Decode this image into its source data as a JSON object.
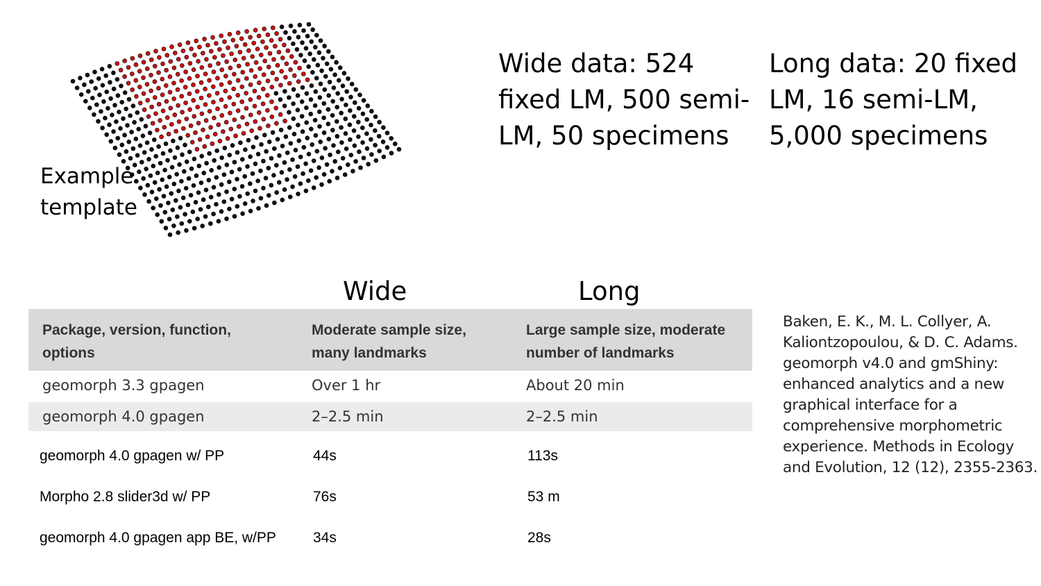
{
  "template": {
    "label": "Example\ntemplate",
    "colors": {
      "fixed": "#111111",
      "semi": "#cc1111"
    }
  },
  "wide_description": "Wide data: 524\nfixed LM, 500 semi-\nLM, 50 specimens",
  "long_description": "Long data: 20 fixed\nLM, 16 semi-LM,\n5,000 specimens",
  "column_headings": {
    "wide": "Wide",
    "long": "Long"
  },
  "table": {
    "header": [
      "Package, version, function,\noptions",
      "Moderate sample size,\nmany landmarks",
      "Large sample size, moderate\nnumber of landmarks"
    ],
    "rows": [
      [
        "geomorph 3.3 gpagen",
        "Over 1 hr",
        "About 20 min"
      ],
      [
        "geomorph 4.0 gpagen",
        "2–2.5 min",
        "2–2.5 min"
      ],
      [
        "geomorph 4.0 gpagen w/ PP",
        "44s",
        "113s"
      ],
      [
        "Morpho 2.8 slider3d w/ PP",
        "76s",
        "53 m"
      ],
      [
        "geomorph 4.0 gpagen app BE, w/PP",
        " 34s",
        "28s"
      ]
    ],
    "colors": {
      "header_bg": "#d9d9d9",
      "alt_row_bg": "#ebebeb"
    }
  },
  "citation": "Baken, E. K., M. L. Collyer, A. Kaliontzopoulou, & D. C. Adams. geomorph v4.0 and gmShiny: enhanced analytics and a new graphical interface for a comprehensive morphometric experience. Methods in Ecology and Evolution, 12 (12), 2355-2363."
}
